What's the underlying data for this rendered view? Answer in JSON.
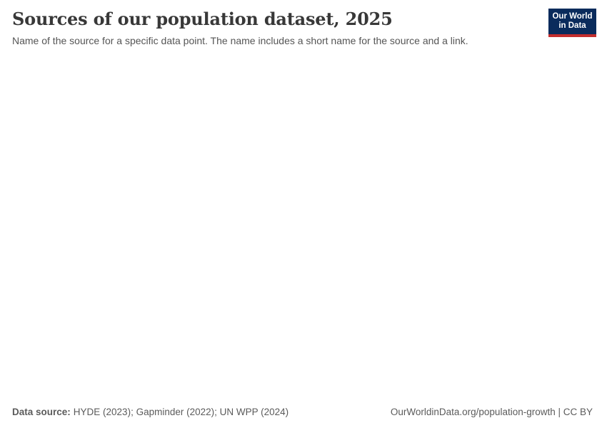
{
  "header": {
    "title": "Sources of our population dataset, 2025",
    "subtitle": "Name of the source for a specific data point. The name includes a short name for the source and a link."
  },
  "logo": {
    "line1": "Our World",
    "line2": "in Data",
    "background_color": "#0a2b5c",
    "accent_bar_color": "#c32e2e",
    "text_color": "#ffffff"
  },
  "footer": {
    "data_source_label": "Data source:",
    "data_source_value": "HYDE (2023); Gapminder (2022); UN WPP (2024)",
    "attribution": "OurWorldinData.org/population-growth | CC BY"
  },
  "chart_data": {
    "type": "map",
    "title": "Sources of our population dataset, 2025",
    "subtitle": "Name of the source for a specific data point. The name includes a short name for the source and a link.",
    "year_shown": "2025",
    "sources": [
      "HYDE (2023)",
      "Gapminder (2022)",
      "UN WPP (2024)"
    ],
    "series": [],
    "plot_area_rendered_empty": true,
    "legend_position": "none",
    "grid": false
  }
}
